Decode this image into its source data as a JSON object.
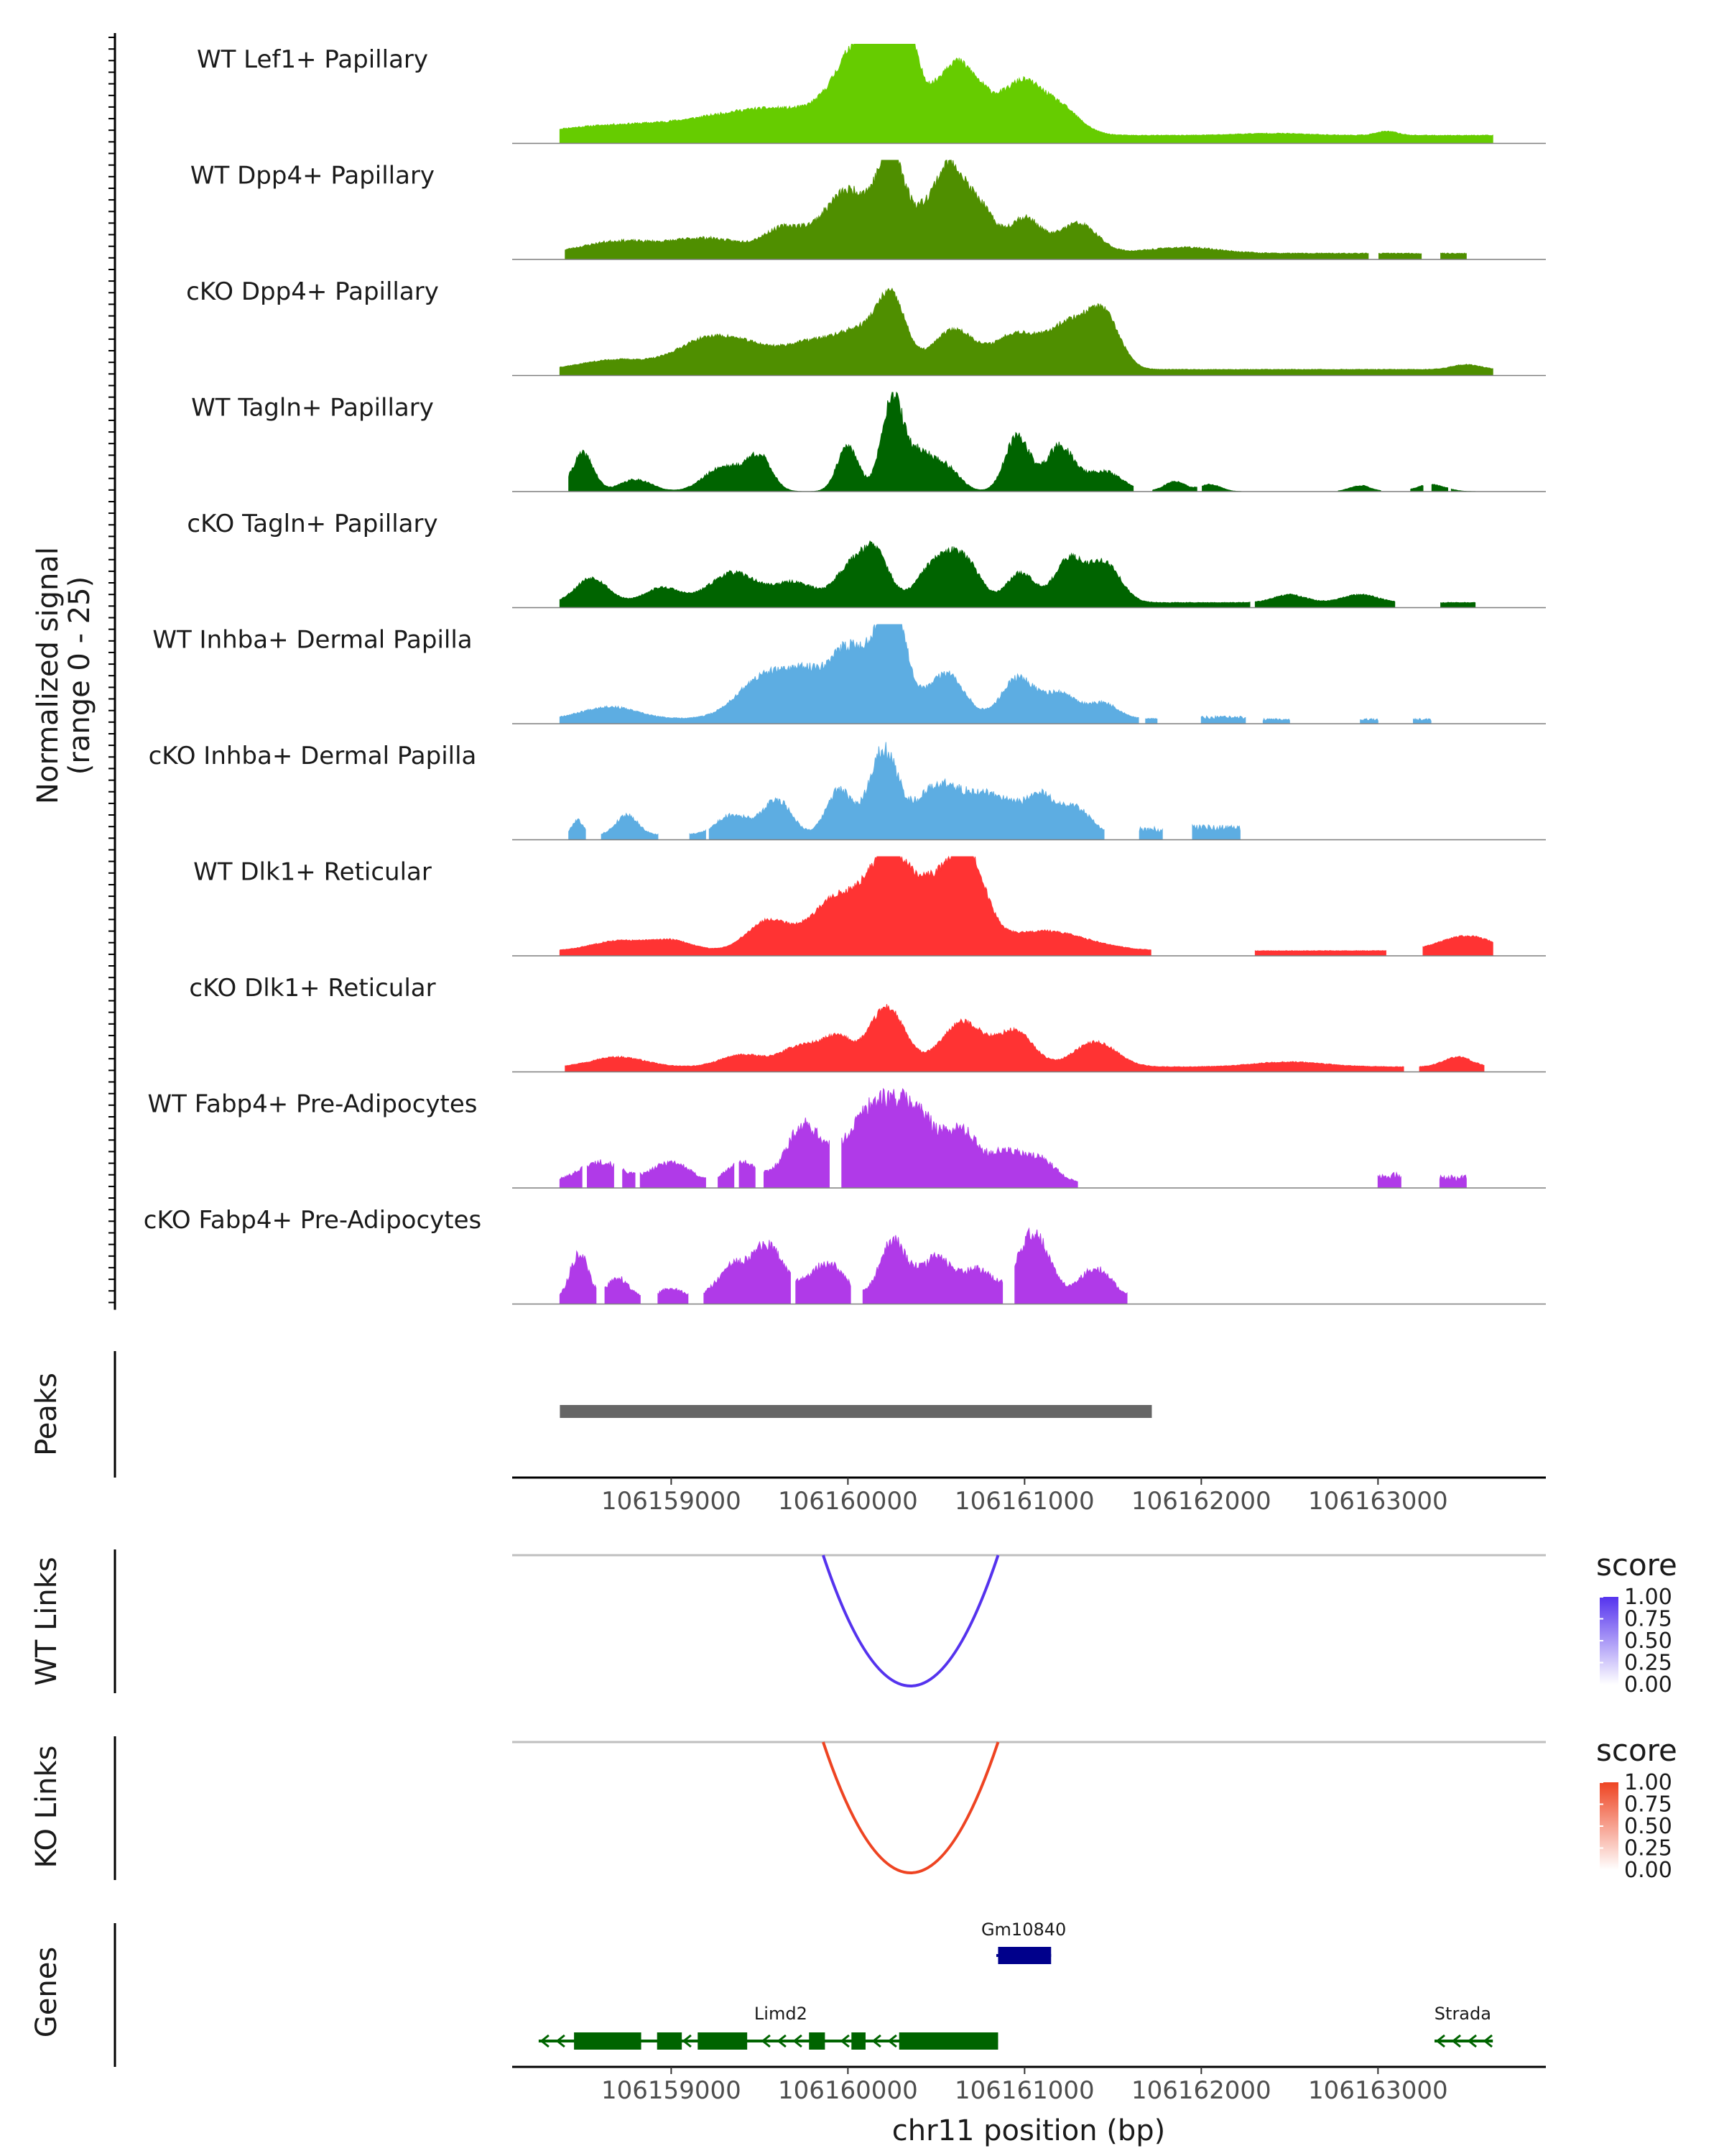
{
  "chart_data": {
    "type": "area",
    "title": "",
    "ylabel_line1": "Normalized signal",
    "ylabel_line2": "(range 0 - 25)",
    "y_range": [
      0,
      25
    ],
    "xlabel": "chr11 position (bp)",
    "xlim": [
      106158100,
      106163950
    ],
    "x_ticks": [
      106159000,
      106160000,
      106161000,
      106162000,
      106163000
    ],
    "colors": {
      "lef1": "#66cc00",
      "dpp4": "#4f8f00",
      "tagln": "#006400",
      "inhba": "#5dade2",
      "dlk1": "#ff3333",
      "fabp4": "#b03ae8",
      "peak": "#666666",
      "wt_link": "#5533ee",
      "ko_link": "#ee4422",
      "gene_plus": "#00008b",
      "gene_minus": "#006400"
    },
    "tracks": [
      {
        "name": "WT Lef1+ Papillary",
        "color_key": "lef1",
        "start": 106158370,
        "end": 106163650,
        "seed": 11,
        "baseline": 0.08,
        "noise": 0.05,
        "bumps": [
          [
            106158600,
            300,
            0.08
          ],
          [
            106159250,
            350,
            0.12
          ],
          [
            106159650,
            300,
            0.2
          ],
          [
            106160080,
            140,
            0.55
          ],
          [
            106160280,
            80,
            0.85
          ],
          [
            106160230,
            200,
            0.55
          ],
          [
            106160700,
            120,
            0.5
          ],
          [
            106160580,
            80,
            0.3
          ],
          [
            106160980,
            100,
            0.45
          ],
          [
            106161180,
            120,
            0.3
          ],
          [
            106162400,
            200,
            0.02
          ],
          [
            106163050,
            60,
            0.04
          ]
        ],
        "gaps": []
      },
      {
        "name": "WT Dpp4+ Papillary",
        "color_key": "dpp4",
        "start": 106158400,
        "end": 106163500,
        "seed": 23,
        "baseline": 0.06,
        "noise": 0.08,
        "bumps": [
          [
            106158700,
            200,
            0.12
          ],
          [
            106159200,
            200,
            0.15
          ],
          [
            106159650,
            120,
            0.25
          ],
          [
            106159960,
            120,
            0.4
          ],
          [
            106160120,
            150,
            0.35
          ],
          [
            106160250,
            70,
            0.8
          ],
          [
            106160580,
            70,
            0.7
          ],
          [
            106160450,
            80,
            0.4
          ],
          [
            106160730,
            90,
            0.5
          ],
          [
            106161000,
            90,
            0.35
          ],
          [
            106161300,
            110,
            0.3
          ],
          [
            106161900,
            200,
            0.06
          ]
        ],
        "gaps": [
          [
            106162950,
            106163000
          ],
          [
            106163250,
            106163350
          ]
        ]
      },
      {
        "name": "cKO Dpp4+ Papillary",
        "color_key": "dpp4",
        "start": 106158370,
        "end": 106163650,
        "seed": 37,
        "baseline": 0.06,
        "noise": 0.05,
        "bumps": [
          [
            106158700,
            200,
            0.1
          ],
          [
            106159150,
            150,
            0.2
          ],
          [
            106159400,
            180,
            0.25
          ],
          [
            106159800,
            150,
            0.25
          ],
          [
            106160080,
            130,
            0.35
          ],
          [
            106160250,
            80,
            0.62
          ],
          [
            106160600,
            120,
            0.4
          ],
          [
            106160950,
            120,
            0.35
          ],
          [
            106161250,
            120,
            0.45
          ],
          [
            106161450,
            90,
            0.5
          ],
          [
            106163500,
            80,
            0.05
          ]
        ],
        "gaps": []
      },
      {
        "name": "WT Tagln+ Papillary",
        "color_key": "tagln",
        "start": 106158420,
        "end": 106163550,
        "seed": 41,
        "baseline": 0.0,
        "noise": 0.1,
        "bumps": [
          [
            106158500,
            60,
            0.38
          ],
          [
            106158800,
            90,
            0.12
          ],
          [
            106159300,
            110,
            0.25
          ],
          [
            106159500,
            70,
            0.33
          ],
          [
            106160000,
            60,
            0.45
          ],
          [
            106160250,
            60,
            0.95
          ],
          [
            106160400,
            70,
            0.35
          ],
          [
            106160550,
            80,
            0.25
          ],
          [
            106160960,
            70,
            0.55
          ],
          [
            106161200,
            80,
            0.45
          ],
          [
            106161450,
            100,
            0.2
          ],
          [
            106161850,
            60,
            0.1
          ],
          [
            106162050,
            60,
            0.07
          ],
          [
            106162900,
            60,
            0.06
          ],
          [
            106163300,
            80,
            0.07
          ]
        ],
        "gaps": [
          [
            106161620,
            106161720
          ],
          [
            106161980,
            106162000
          ],
          [
            106162230,
            106162770
          ],
          [
            106163020,
            106163180
          ],
          [
            106163260,
            106163300
          ],
          [
            106163400,
            106163410
          ]
        ]
      },
      {
        "name": "cKO Tagln+ Papillary",
        "color_key": "tagln",
        "start": 106158370,
        "end": 106163550,
        "seed": 53,
        "baseline": 0.05,
        "noise": 0.07,
        "bumps": [
          [
            106158550,
            90,
            0.25
          ],
          [
            106158950,
            100,
            0.15
          ],
          [
            106159350,
            130,
            0.3
          ],
          [
            106159700,
            120,
            0.2
          ],
          [
            106160000,
            80,
            0.3
          ],
          [
            106160150,
            80,
            0.52
          ],
          [
            106160480,
            90,
            0.35
          ],
          [
            106160650,
            90,
            0.45
          ],
          [
            106160980,
            80,
            0.3
          ],
          [
            106161250,
            80,
            0.42
          ],
          [
            106161450,
            90,
            0.4
          ],
          [
            106162500,
            90,
            0.08
          ],
          [
            106162900,
            100,
            0.08
          ]
        ],
        "gaps": [
          [
            106162280,
            106162300
          ],
          [
            106163100,
            106163350
          ]
        ]
      },
      {
        "name": "WT Inhba+ Dermal Papilla",
        "color_key": "inhba",
        "start": 106158370,
        "end": 106161750,
        "seed": 67,
        "baseline": 0.05,
        "noise": 0.08,
        "bumps": [
          [
            106158650,
            150,
            0.12
          ],
          [
            106159500,
            140,
            0.35
          ],
          [
            106159780,
            150,
            0.45
          ],
          [
            106160000,
            90,
            0.45
          ],
          [
            106160200,
            120,
            0.55
          ],
          [
            106160250,
            70,
            0.8
          ],
          [
            106160560,
            100,
            0.45
          ],
          [
            106160960,
            90,
            0.4
          ],
          [
            106161200,
            100,
            0.25
          ],
          [
            106161450,
            80,
            0.15
          ]
        ],
        "gaps": [
          [
            106161650,
            106161680
          ]
        ],
        "extra_segments": [
          [
            106162000,
            106162250,
            0.06
          ],
          [
            106162350,
            106162500,
            0.04
          ],
          [
            106162900,
            106163000,
            0.04
          ],
          [
            106163200,
            106163300,
            0.04
          ]
        ]
      },
      {
        "name": "cKO Inhba+ Dermal Papilla",
        "color_key": "inhba",
        "start": 106158420,
        "end": 106161450,
        "seed": 79,
        "baseline": 0.05,
        "noise": 0.1,
        "bumps": [
          [
            106158470,
            30,
            0.15
          ],
          [
            106158750,
            60,
            0.2
          ],
          [
            106159350,
            90,
            0.2
          ],
          [
            106159600,
            80,
            0.35
          ],
          [
            106159950,
            70,
            0.45
          ],
          [
            106160200,
            80,
            0.85
          ],
          [
            106160500,
            120,
            0.45
          ],
          [
            106160800,
            150,
            0.4
          ],
          [
            106161100,
            90,
            0.35
          ],
          [
            106161300,
            80,
            0.25
          ]
        ],
        "gaps": [
          [
            106158520,
            106158600
          ],
          [
            106158930,
            106159100
          ],
          [
            106159200,
            106159210
          ]
        ],
        "extra_segments": [
          [
            106161650,
            106161780,
            0.1
          ],
          [
            106161950,
            106162220,
            0.12
          ]
        ]
      },
      {
        "name": "WT Dlk1+ Reticular",
        "color_key": "dlk1",
        "start": 106158370,
        "end": 106163650,
        "seed": 83,
        "baseline": 0.05,
        "noise": 0.05,
        "bumps": [
          [
            106158700,
            150,
            0.1
          ],
          [
            106159000,
            120,
            0.1
          ],
          [
            106159550,
            120,
            0.3
          ],
          [
            106159950,
            150,
            0.55
          ],
          [
            106160230,
            110,
            0.85
          ],
          [
            106160480,
            130,
            0.6
          ],
          [
            106160680,
            100,
            0.8
          ],
          [
            106161100,
            250,
            0.2
          ],
          [
            106163500,
            150,
            0.15
          ]
        ],
        "gaps": [
          [
            106161720,
            106162300
          ],
          [
            106163050,
            106163250
          ]
        ]
      },
      {
        "name": "cKO Dlk1+ Reticular",
        "color_key": "dlk1",
        "start": 106158400,
        "end": 106163600,
        "seed": 97,
        "baseline": 0.05,
        "noise": 0.06,
        "bumps": [
          [
            106158700,
            150,
            0.1
          ],
          [
            106159400,
            120,
            0.12
          ],
          [
            106159750,
            120,
            0.22
          ],
          [
            106159950,
            80,
            0.25
          ],
          [
            106160220,
            100,
            0.6
          ],
          [
            106160650,
            120,
            0.45
          ],
          [
            106160950,
            100,
            0.35
          ],
          [
            106161400,
            120,
            0.25
          ],
          [
            106162500,
            200,
            0.05
          ],
          [
            106163450,
            80,
            0.1
          ]
        ],
        "gaps": [
          [
            106163150,
            106163230
          ]
        ]
      },
      {
        "name": "WT Fabp4+ Pre-Adipocytes",
        "color_key": "fabp4",
        "start": 106158370,
        "end": 106161300,
        "seed": 101,
        "baseline": 0.06,
        "noise": 0.12,
        "bumps": [
          [
            106158600,
            120,
            0.2
          ],
          [
            106159000,
            100,
            0.2
          ],
          [
            106159400,
            80,
            0.2
          ],
          [
            106159750,
            100,
            0.55
          ],
          [
            106160150,
            150,
            0.75
          ],
          [
            106160400,
            120,
            0.55
          ],
          [
            106160650,
            90,
            0.45
          ],
          [
            106160900,
            100,
            0.3
          ],
          [
            106161100,
            80,
            0.2
          ]
        ],
        "gaps": [
          [
            106158500,
            106158520
          ],
          [
            106158680,
            106158720
          ],
          [
            106158800,
            106158820
          ],
          [
            106159200,
            106159260
          ],
          [
            106159360,
            106159380
          ],
          [
            106159480,
            106159520
          ],
          [
            106159900,
            106159960
          ]
        ],
        "extra_segments": [
          [
            106163000,
            106163130,
            0.12
          ],
          [
            106163350,
            106163500,
            0.1
          ]
        ]
      },
      {
        "name": "cKO Fabp4+ Pre-Adipocytes",
        "color_key": "fabp4",
        "start": 106158370,
        "end": 106161580,
        "seed": 113,
        "baseline": 0.06,
        "noise": 0.12,
        "bumps": [
          [
            106158480,
            50,
            0.45
          ],
          [
            106158700,
            60,
            0.2
          ],
          [
            106159000,
            60,
            0.1
          ],
          [
            106159350,
            90,
            0.3
          ],
          [
            106159550,
            90,
            0.5
          ],
          [
            106159880,
            100,
            0.35
          ],
          [
            106160250,
            70,
            0.55
          ],
          [
            106160500,
            110,
            0.4
          ],
          [
            106160750,
            80,
            0.25
          ],
          [
            106161050,
            90,
            0.65
          ],
          [
            106161400,
            90,
            0.3
          ]
        ],
        "gaps": [
          [
            106158580,
            106158620
          ],
          [
            106158830,
            106158920
          ],
          [
            106159100,
            106159180
          ],
          [
            106159680,
            106159700
          ],
          [
            106160020,
            106160080
          ],
          [
            106160880,
            106160940
          ]
        ]
      }
    ],
    "peaks": {
      "label": "Peaks",
      "regions": [
        [
          106158370,
          106161720
        ]
      ]
    },
    "wt_links": {
      "label": "WT Links",
      "start": 106159860,
      "end": 106160850,
      "score": 1.0,
      "legend_title": "score",
      "legend_ticks": [
        "1.00",
        "0.75",
        "0.50",
        "0.25",
        "0.00"
      ]
    },
    "ko_links": {
      "label": "KO Links",
      "start": 106159860,
      "end": 106160850,
      "score": 1.0,
      "legend_title": "score",
      "legend_ticks": [
        "1.00",
        "0.75",
        "0.50",
        "0.25",
        "0.00"
      ]
    },
    "genes": {
      "label": "Genes",
      "items": [
        {
          "name": "Gm10840",
          "strand": "+",
          "start": 106160840,
          "end": 106161150,
          "row": 1,
          "exons": [
            [
              106160850,
              106161150
            ]
          ]
        },
        {
          "name": "Limd2",
          "strand": "-",
          "start": 106158250,
          "end": 106160850,
          "row": 0,
          "exons": [
            [
              106158450,
              106158830
            ],
            [
              106158920,
              106159060
            ],
            [
              106159150,
              106159430
            ],
            [
              106159780,
              106159870
            ],
            [
              106160020,
              106160100
            ],
            [
              106160290,
              106160850
            ]
          ]
        },
        {
          "name": "Strada",
          "strand": "-",
          "start": 106163320,
          "end": 106163650,
          "row": 0,
          "exons": []
        }
      ]
    }
  }
}
